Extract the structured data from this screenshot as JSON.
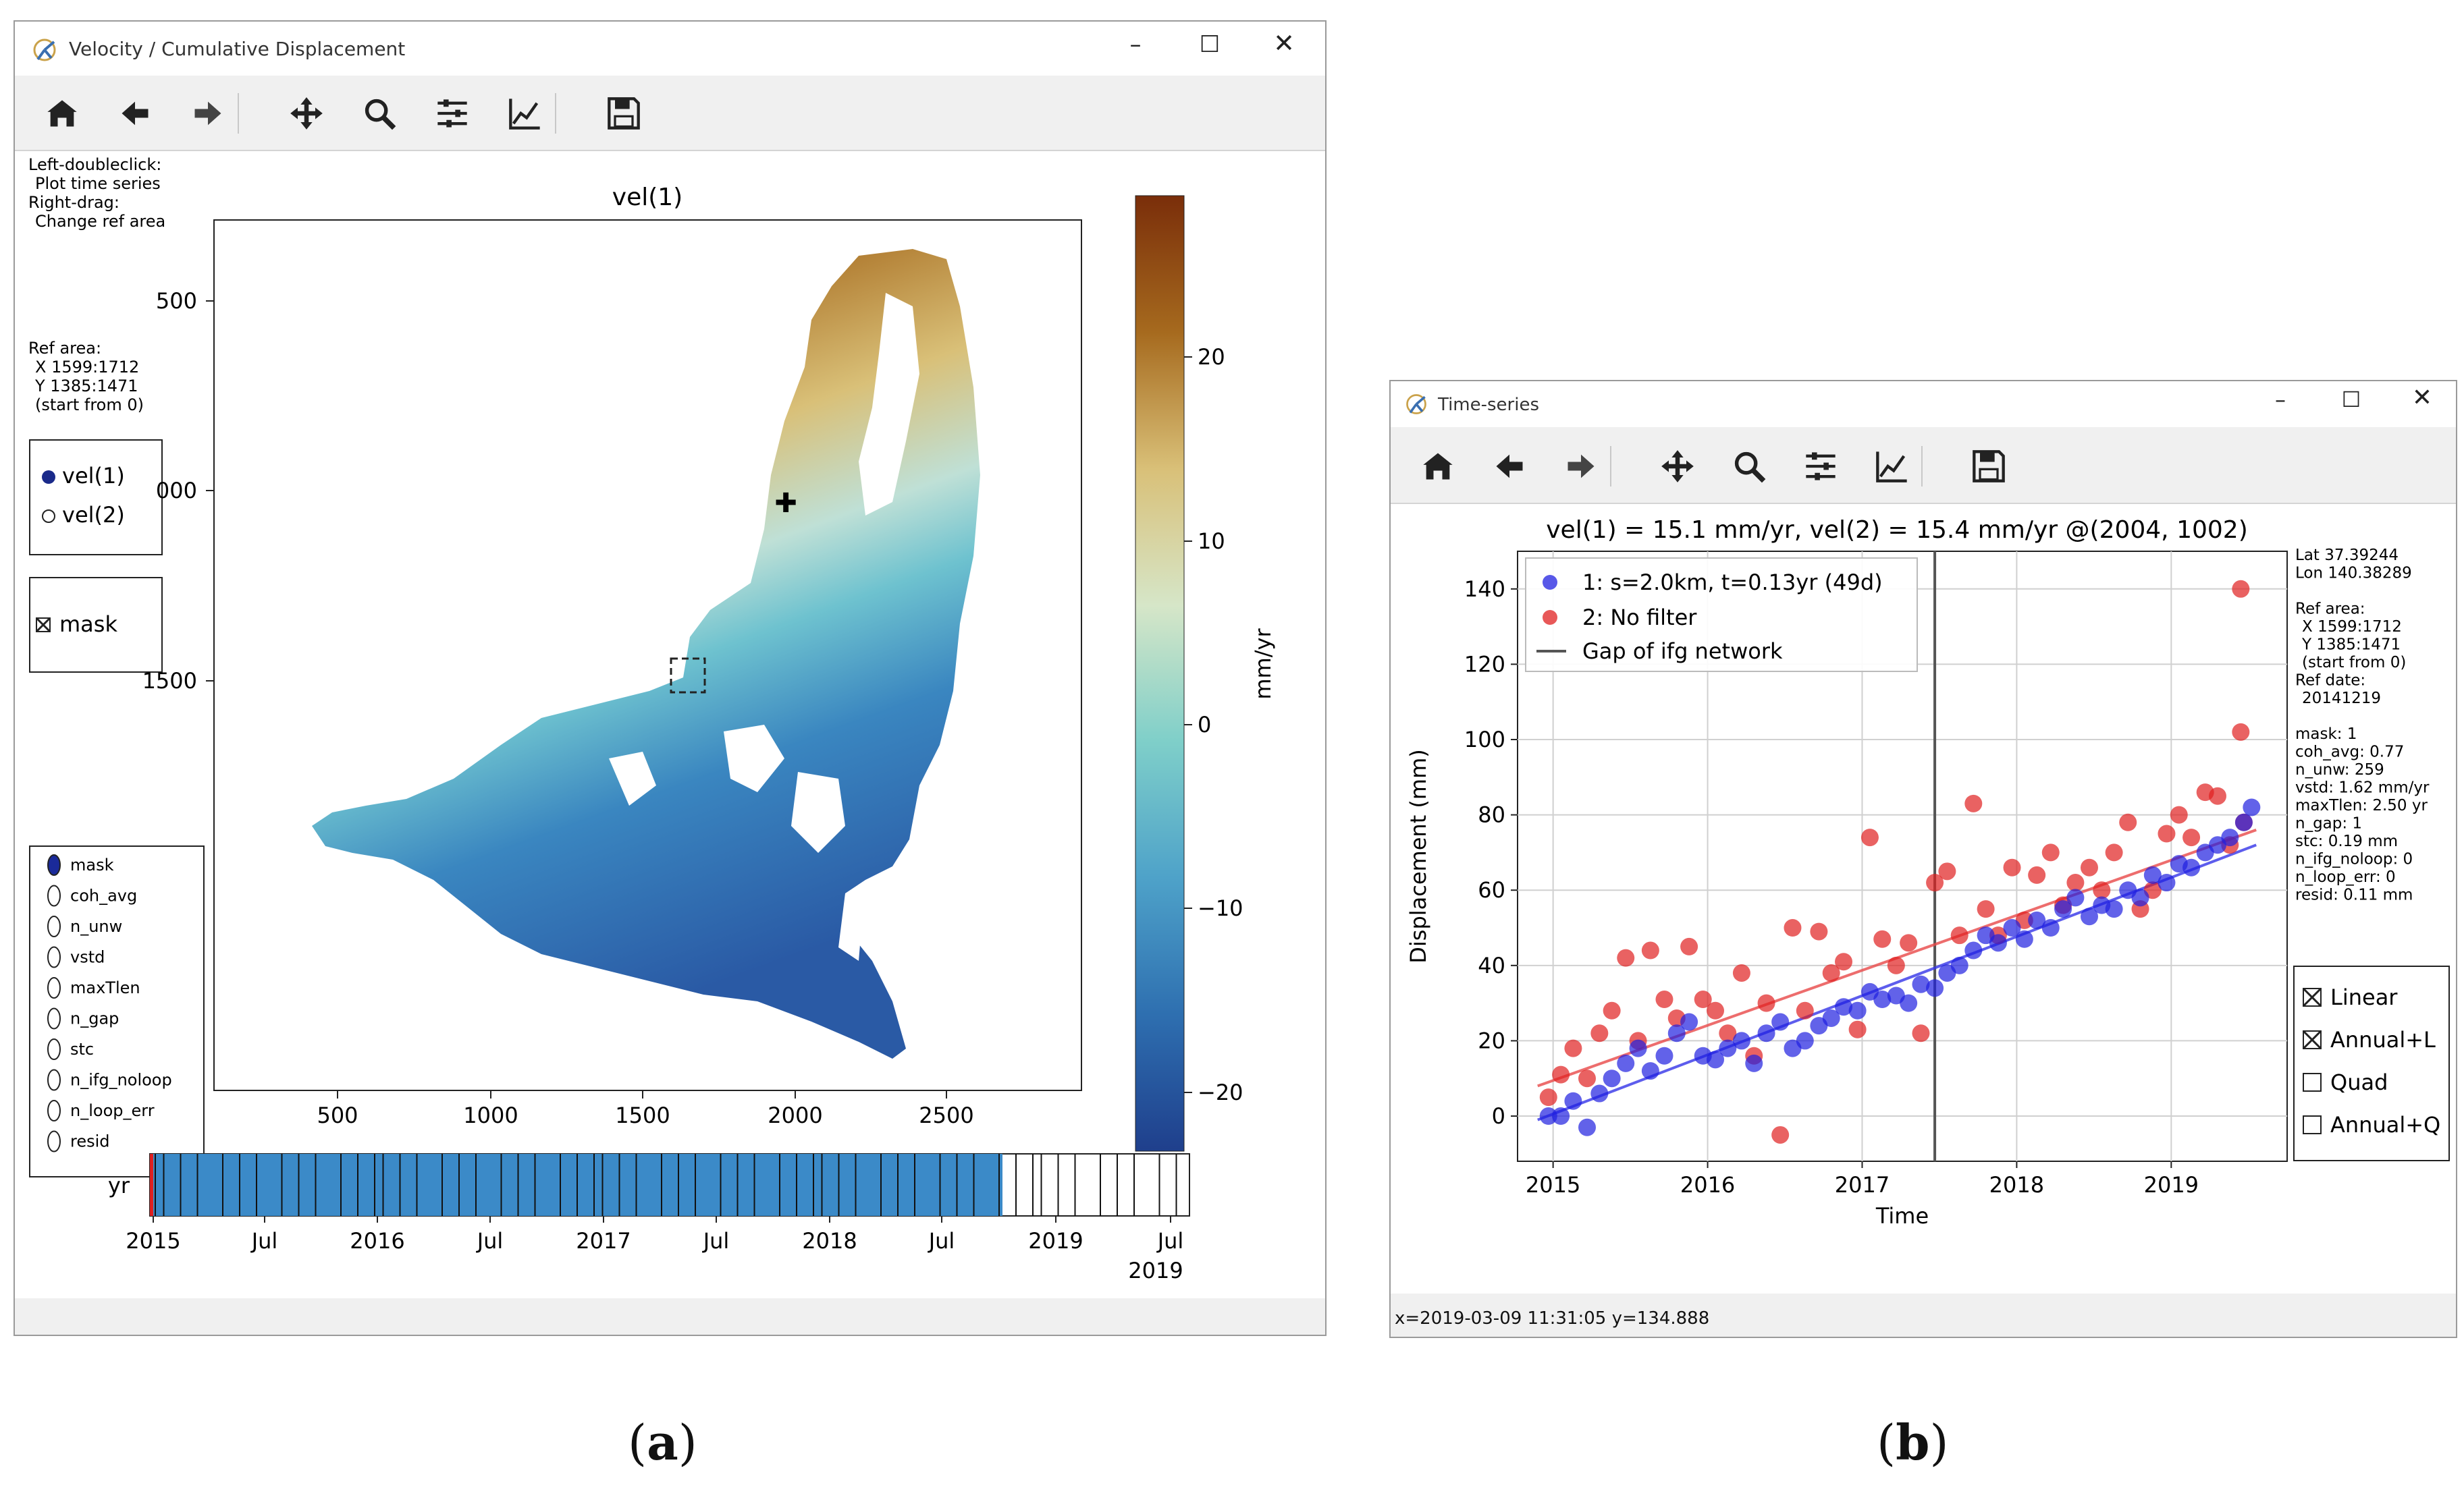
{
  "window_a": {
    "title": "Velocity / Cumulative Displacement",
    "toolbar_icons": [
      "home-icon",
      "back-arrow-icon",
      "forward-arrow-icon",
      "pan-icon",
      "zoom-icon",
      "configure-subplots-icon",
      "edit-axis-icon",
      "save-icon"
    ],
    "instructions": [
      "Left-doubleclick:",
      "Plot time series",
      "Right-drag:",
      "Change ref area"
    ],
    "ref_area": [
      "Ref area:",
      "X 1599:1712",
      "Y 1385:1471",
      "(start from 0)"
    ],
    "radio_vel": [
      "vel(1)",
      "vel(2)"
    ],
    "mask_checkbox": "mask",
    "radio_layers": [
      "mask",
      "coh_avg",
      "n_unw",
      "vstd",
      "maxTlen",
      "n_gap",
      "stc",
      "n_ifg_noloop",
      "n_loop_err",
      "resid"
    ],
    "map_title": "vel(1)",
    "map_xticks": [
      "500",
      "1000",
      "1500",
      "2000",
      "2500"
    ],
    "map_yticks": [
      "500",
      "000",
      "1500"
    ],
    "colorbar_ticks": [
      "20",
      "10",
      "0",
      "−10",
      "−20"
    ],
    "colorbar_label": "mm/yr",
    "colorbar_colors": [
      "#7a2e0a",
      "#a66a1e",
      "#d9c078",
      "#d6e6c8",
      "#7fcfc9",
      "#4ea2c9",
      "#2e6fb0",
      "#1f3f8c"
    ],
    "timeline_label": "yr",
    "timeline_ticks": [
      "2015",
      "Jul",
      "2016",
      "Jul",
      "2017",
      "Jul",
      "2018",
      "Jul",
      "2019",
      "Jul"
    ],
    "timeline_year2": "2019"
  },
  "window_b": {
    "title": "Time-series",
    "toolbar_icons": [
      "home-icon",
      "back-arrow-icon",
      "forward-arrow-icon",
      "pan-icon",
      "zoom-icon",
      "configure-subplots-icon",
      "edit-axis-icon",
      "save-icon"
    ],
    "plot_title": "vel(1) = 15.1 mm/yr, vel(2) = 15.4 mm/yr @(2004, 1002)",
    "legend": [
      "1: s=2.0km, t=0.13yr (49d)",
      "2: No filter",
      "Gap of ifg network"
    ],
    "ylabel": "Displacement (mm)",
    "xlabel": "Time",
    "info_lines": [
      "Lat 37.39244",
      "Lon 140.38289",
      "",
      "Ref area:",
      "X 1599:1712",
      "Y 1385:1471",
      "(start from 0)",
      "Ref date:",
      "20141219",
      "",
      "mask: 1",
      "coh_avg: 0.77",
      "n_unw: 259",
      "vstd: 1.62 mm/yr",
      "maxTlen: 2.50 yr",
      "n_gap: 1",
      "stc: 0.19 mm",
      "n_ifg_noloop: 0",
      "n_loop_err: 0",
      "resid: 0.11 mm"
    ],
    "checkboxes": [
      {
        "label": "Linear",
        "checked": true
      },
      {
        "label": "Annual+L",
        "checked": true
      },
      {
        "label": "Quad",
        "checked": false
      },
      {
        "label": "Annual+Q",
        "checked": false
      }
    ],
    "status": "x=2019-03-09 11:31:05 y=134.888",
    "series_colors": {
      "filtered": "#2020e0",
      "nofilter": "#e02020",
      "gap": "#555555"
    }
  },
  "chart_data": {
    "type": "scatter",
    "title": "vel(1) = 15.1 mm/yr, vel(2) = 15.4 mm/yr @(2004, 1002)",
    "xlabel": "Time",
    "ylabel": "Displacement (mm)",
    "x_ticks": [
      "2015",
      "2016",
      "2017",
      "2018",
      "2019"
    ],
    "y_ticks": [
      0,
      20,
      40,
      60,
      80,
      100,
      120,
      140
    ],
    "xlim": [
      2014.77,
      2019.75
    ],
    "ylim": [
      -12,
      150
    ],
    "grid": true,
    "legend_position": "top-left",
    "gap_x": 2017.47,
    "series": [
      {
        "name": "1: s=2.0km, t=0.13yr (49d)",
        "color": "#2020e0",
        "x": [
          2014.97,
          2015.05,
          2015.13,
          2015.22,
          2015.3,
          2015.38,
          2015.47,
          2015.55,
          2015.63,
          2015.72,
          2015.8,
          2015.88,
          2015.97,
          2016.05,
          2016.13,
          2016.22,
          2016.3,
          2016.38,
          2016.47,
          2016.55,
          2016.63,
          2016.72,
          2016.8,
          2016.88,
          2016.97,
          2017.05,
          2017.13,
          2017.22,
          2017.3,
          2017.38,
          2017.47,
          2017.55,
          2017.63,
          2017.72,
          2017.8,
          2017.88,
          2017.97,
          2018.05,
          2018.13,
          2018.22,
          2018.3,
          2018.38,
          2018.47,
          2018.55,
          2018.63,
          2018.72,
          2018.8,
          2018.88,
          2018.97,
          2019.05,
          2019.13,
          2019.22,
          2019.3,
          2019.38,
          2019.47,
          2019.52
        ],
        "y": [
          0,
          0,
          4,
          -3,
          6,
          10,
          14,
          18,
          12,
          16,
          22,
          25,
          16,
          15,
          18,
          20,
          14,
          22,
          25,
          18,
          20,
          24,
          26,
          29,
          28,
          33,
          31,
          32,
          30,
          35,
          34,
          38,
          40,
          44,
          48,
          46,
          50,
          47,
          52,
          50,
          55,
          58,
          53,
          56,
          55,
          60,
          58,
          64,
          62,
          67,
          66,
          70,
          72,
          74,
          78,
          82
        ]
      },
      {
        "name": "2: No filter",
        "color": "#e02020",
        "x": [
          2014.97,
          2015.05,
          2015.13,
          2015.22,
          2015.3,
          2015.38,
          2015.47,
          2015.55,
          2015.63,
          2015.72,
          2015.8,
          2015.88,
          2015.97,
          2016.05,
          2016.13,
          2016.22,
          2016.3,
          2016.38,
          2016.47,
          2016.55,
          2016.63,
          2016.72,
          2016.8,
          2016.88,
          2016.97,
          2017.05,
          2017.13,
          2017.22,
          2017.3,
          2017.38,
          2017.47,
          2017.55,
          2017.63,
          2017.72,
          2017.8,
          2017.88,
          2017.97,
          2018.05,
          2018.13,
          2018.22,
          2018.3,
          2018.38,
          2018.47,
          2018.55,
          2018.63,
          2018.72,
          2018.8,
          2018.88,
          2018.97,
          2019.05,
          2019.13,
          2019.22,
          2019.3,
          2019.38,
          2019.47,
          2019.45
        ],
        "y": [
          5,
          11,
          18,
          10,
          22,
          28,
          42,
          20,
          44,
          31,
          26,
          45,
          31,
          28,
          22,
          38,
          16,
          30,
          -5,
          50,
          28,
          49,
          38,
          41,
          23,
          74,
          47,
          40,
          46,
          22,
          62,
          65,
          48,
          83,
          55,
          48,
          66,
          52,
          64,
          70,
          56,
          62,
          66,
          60,
          70,
          78,
          55,
          60,
          75,
          80,
          74,
          86,
          85,
          72,
          78,
          102
        ]
      }
    ],
    "fit_lines": [
      {
        "series": "filtered",
        "x": [
          2014.9,
          2019.55
        ],
        "y": [
          -1,
          72
        ]
      },
      {
        "series": "nofilter",
        "x": [
          2014.9,
          2019.55
        ],
        "y": [
          8,
          76
        ]
      }
    ],
    "outlier": {
      "x": 2019.45,
      "y": 140
    }
  }
}
